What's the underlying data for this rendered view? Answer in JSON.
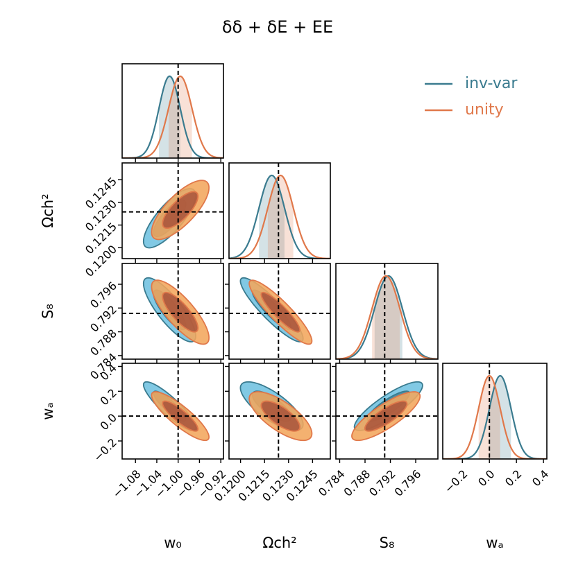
{
  "chart_data": {
    "type": "corner",
    "title": "δδ + δE + EE",
    "parameters": [
      {
        "key": "w0",
        "label": "w₀",
        "ticks": [
          -1.08,
          -1.04,
          -1.0,
          -0.96,
          -0.92
        ],
        "tick_labels": [
          "−1.08",
          "−1.04",
          "−1.00",
          "−0.96",
          "−0.92"
        ],
        "range": [
          -1.105,
          -0.915
        ],
        "truth": -1.0
      },
      {
        "key": "omch2",
        "label": "Ωch²",
        "ticks": [
          0.12,
          0.1215,
          0.123,
          0.1245
        ],
        "tick_labels": [
          "0.1200",
          "0.1215",
          "0.1230",
          "0.1245"
        ],
        "range": [
          0.11928,
          0.12561
        ],
        "truth": 0.12237
      },
      {
        "key": "s8",
        "label": "S₈",
        "ticks": [
          0.784,
          0.788,
          0.792,
          0.796
        ],
        "tick_labels": [
          "0.784",
          "0.788",
          "0.792",
          "0.796"
        ],
        "range": [
          0.7834,
          0.7995
        ],
        "truth": 0.7911
      },
      {
        "key": "wa",
        "label": "wₐ",
        "ticks": [
          -0.2,
          0.0,
          0.2,
          0.4
        ],
        "tick_labels": [
          "−0.2",
          "0.0",
          "0.2",
          "0.4"
        ],
        "range": [
          -0.345,
          0.425
        ],
        "truth": 0.0
      }
    ],
    "series": [
      {
        "name": "inv-var",
        "line_color": "#3a7b8f",
        "fill_light": "#6fc1e0",
        "fill_dark": "#3c7d92",
        "means": [
          -1.016,
          0.12195,
          0.7917,
          0.08
        ],
        "sigmas": [
          0.02,
          0.0008,
          0.0022,
          0.08
        ],
        "correlations": [
          [
            0,
            1,
            0.78
          ],
          [
            0,
            2,
            -0.82
          ],
          [
            0,
            3,
            -0.88
          ],
          [
            1,
            2,
            -0.9
          ],
          [
            1,
            3,
            -0.75
          ],
          [
            2,
            3,
            0.85
          ]
        ]
      },
      {
        "name": "unity",
        "line_color": "#e0784a",
        "fill_light": "#f3a65c",
        "fill_dark": "#a34a36",
        "means": [
          -0.996,
          0.1225,
          0.7913,
          0.0
        ],
        "sigmas": [
          0.022,
          0.0008,
          0.0022,
          0.08
        ],
        "correlations": [
          [
            0,
            1,
            0.75
          ],
          [
            0,
            2,
            -0.8
          ],
          [
            0,
            3,
            -0.86
          ],
          [
            1,
            2,
            -0.9
          ],
          [
            1,
            3,
            -0.72
          ],
          [
            2,
            3,
            0.82
          ]
        ]
      }
    ],
    "contour_levels": [
      "68%",
      "95%"
    ],
    "legend_position": "top-right",
    "grid": false
  }
}
